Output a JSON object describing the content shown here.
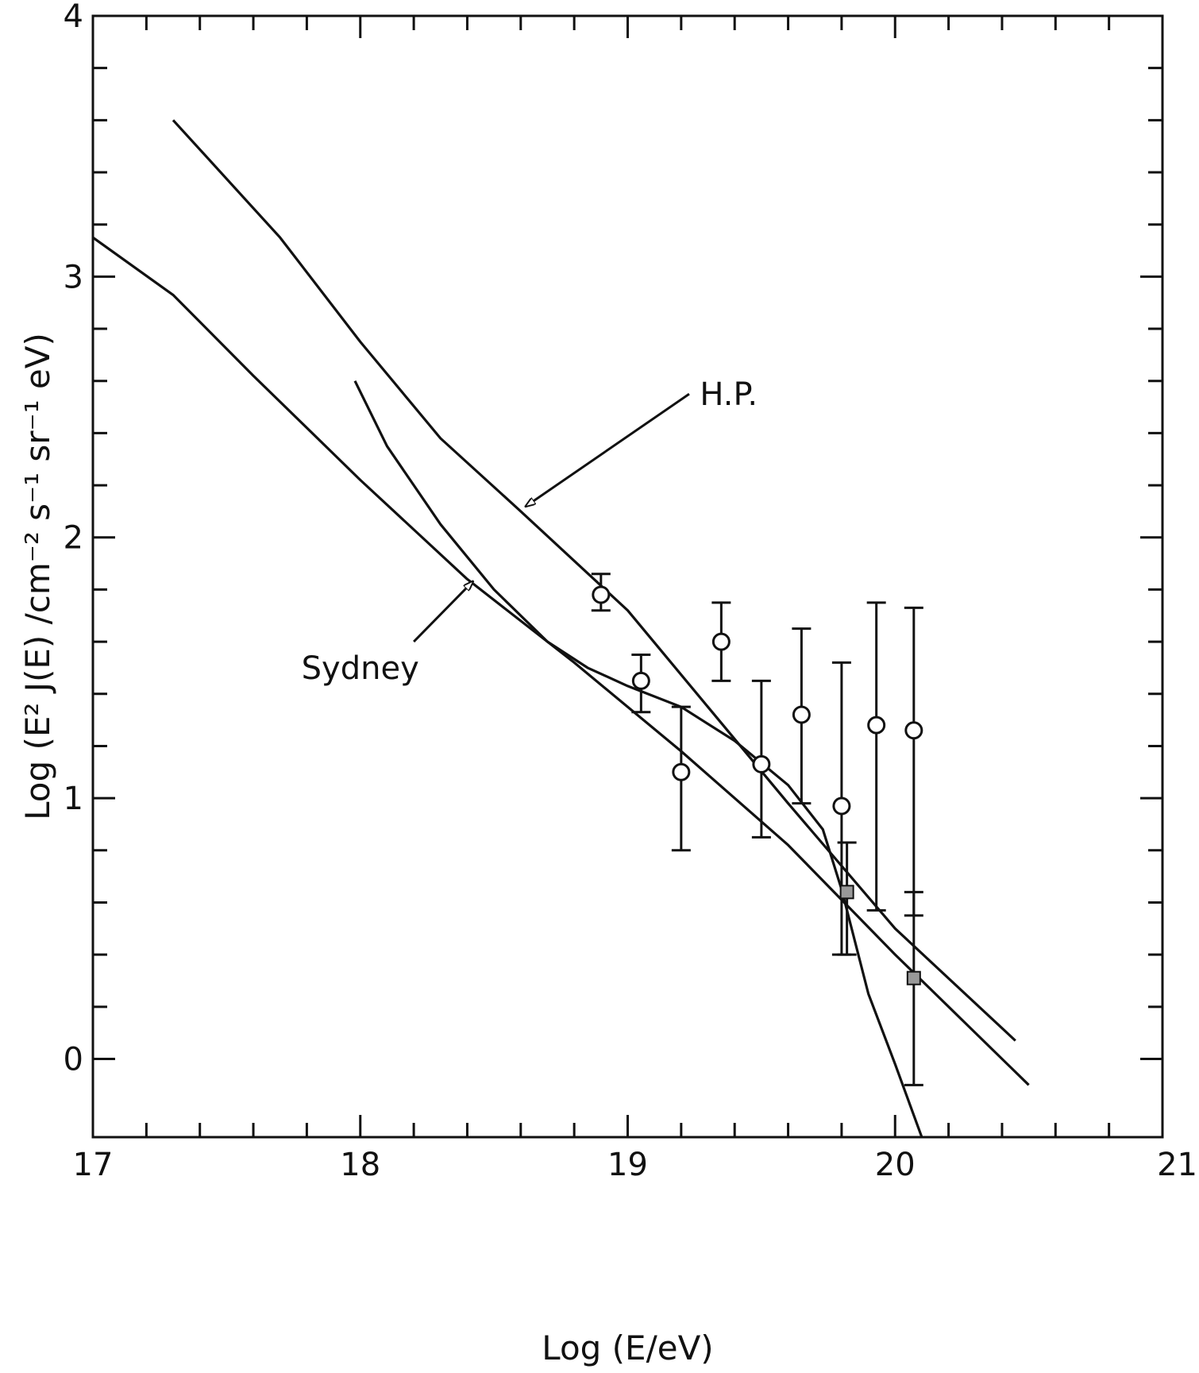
{
  "chart_data": {
    "type": "line",
    "title": "",
    "xlabel": "Log (E/eV)",
    "ylabel": "Log (E² J(E) /cm⁻² s⁻¹ sr⁻¹ eV)",
    "xlim": [
      17,
      21
    ],
    "ylim": [
      -0.3,
      4
    ],
    "x_ticks": [
      "17",
      "18",
      "19",
      "20",
      "21"
    ],
    "y_ticks": [
      "0",
      "1",
      "2",
      "3",
      "4"
    ],
    "grid": false,
    "legend": "none",
    "annotations": [
      {
        "text": "H.P.",
        "target": "H.P."
      },
      {
        "text": "Sydney",
        "target": "Sydney"
      }
    ],
    "series": [
      {
        "name": "H.P.",
        "style": "solid",
        "points": [
          [
            17.3,
            3.6
          ],
          [
            17.7,
            3.15
          ],
          [
            18.0,
            2.75
          ],
          [
            18.3,
            2.38
          ],
          [
            18.6,
            2.1
          ],
          [
            19.0,
            1.72
          ],
          [
            19.3,
            1.35
          ],
          [
            19.6,
            0.98
          ],
          [
            20.0,
            0.5
          ],
          [
            20.45,
            0.07
          ]
        ]
      },
      {
        "name": "Sydney",
        "style": "solid",
        "points": [
          [
            17.0,
            3.15
          ],
          [
            17.3,
            2.93
          ],
          [
            17.6,
            2.62
          ],
          [
            18.0,
            2.22
          ],
          [
            18.4,
            1.84
          ],
          [
            18.8,
            1.52
          ],
          [
            19.2,
            1.18
          ],
          [
            19.6,
            0.82
          ],
          [
            20.0,
            0.4
          ],
          [
            20.5,
            -0.1
          ]
        ]
      },
      {
        "name": "",
        "style": "solid",
        "points": [
          [
            17.98,
            2.6
          ],
          [
            18.1,
            2.35
          ],
          [
            18.3,
            2.05
          ],
          [
            18.5,
            1.8
          ],
          [
            18.7,
            1.6
          ],
          [
            18.85,
            1.5
          ],
          [
            19.0,
            1.43
          ],
          [
            19.2,
            1.35
          ],
          [
            19.4,
            1.22
          ],
          [
            19.6,
            1.05
          ],
          [
            19.73,
            0.88
          ],
          [
            19.8,
            0.65
          ],
          [
            19.9,
            0.25
          ],
          [
            20.0,
            -0.02
          ],
          [
            20.1,
            -0.3
          ]
        ]
      },
      {
        "name": "",
        "type": "scatter",
        "marker": "open-circle",
        "points": [
          {
            "x": 18.9,
            "y": 1.78,
            "ylow": 1.72,
            "yhigh": 1.86
          },
          {
            "x": 19.05,
            "y": 1.45,
            "ylow": 1.33,
            "yhigh": 1.55
          },
          {
            "x": 19.2,
            "y": 1.1,
            "ylow": 0.8,
            "yhigh": 1.35
          },
          {
            "x": 19.35,
            "y": 1.6,
            "ylow": 1.45,
            "yhigh": 1.75
          },
          {
            "x": 19.5,
            "y": 1.13,
            "ylow": 0.85,
            "yhigh": 1.45
          },
          {
            "x": 19.65,
            "y": 1.32,
            "ylow": 0.98,
            "yhigh": 1.65
          },
          {
            "x": 19.8,
            "y": 0.97,
            "ylow": 0.4,
            "yhigh": 1.52
          },
          {
            "x": 19.93,
            "y": 1.28,
            "ylow": 0.57,
            "yhigh": 1.75
          },
          {
            "x": 20.07,
            "y": 1.26,
            "ylow": 0.55,
            "yhigh": 1.73
          }
        ]
      },
      {
        "name": "",
        "type": "scatter",
        "marker": "filled-square",
        "points": [
          {
            "x": 19.82,
            "y": 0.64,
            "ylow": 0.4,
            "yhigh": 0.83
          },
          {
            "x": 20.07,
            "y": 0.31,
            "ylow": -0.1,
            "yhigh": 0.64
          }
        ]
      }
    ]
  }
}
